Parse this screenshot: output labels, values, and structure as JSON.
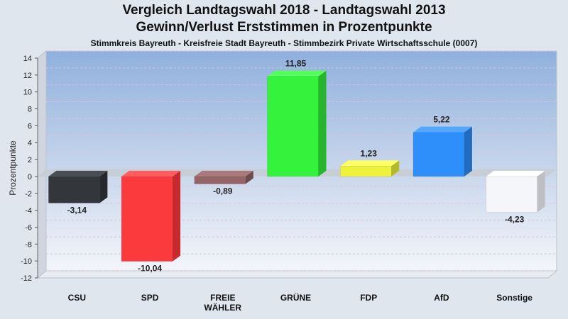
{
  "chart_data": {
    "type": "bar",
    "title": "Vergleich Landtagswahl 2018 - Landtagswahl 2013",
    "subtitle": "Gewinn/Verlust Erststimmen in Prozentpunkte",
    "subtitle2": "Stimmkreis Bayreuth - Kreisfreie Stadt Bayreuth - Stimmbezirk Private Wirtschaftsschule (0007)",
    "ylabel": "Prozentpunkte",
    "xlabel": "",
    "ylim": [
      -12,
      14
    ],
    "yticks": [
      "14",
      "12",
      "10",
      "8",
      "6",
      "4",
      "2",
      "0",
      "-2",
      "-4",
      "-6",
      "-8",
      "-10",
      "-12"
    ],
    "ytick_values": [
      14,
      12,
      10,
      8,
      6,
      4,
      2,
      0,
      -2,
      -4,
      -6,
      -8,
      -10,
      -12
    ],
    "categories": [
      [
        "CSU"
      ],
      [
        "SPD"
      ],
      [
        "FREIE",
        "WÄHLER"
      ],
      [
        "GRÜNE"
      ],
      [
        "FDP"
      ],
      [
        "AfD"
      ],
      [
        "Sonstige"
      ]
    ],
    "values": [
      -3.14,
      -10.04,
      -0.89,
      11.85,
      1.23,
      5.22,
      -4.23
    ],
    "value_labels": [
      "-3,14",
      "-10,04",
      "-0,89",
      "11,85",
      "1,23",
      "5,22",
      "-4,23"
    ],
    "colors": [
      "#33373c",
      "#fb3a3e",
      "#946466",
      "#35f23c",
      "#eef23a",
      "#2e8ffb",
      "#f5f6f9"
    ],
    "side_colors": [
      "#25282c",
      "#c62a2e",
      "#6e4a4c",
      "#27b52d",
      "#b5b82a",
      "#226cc0",
      "#bdbfc3"
    ],
    "top_colors": [
      "#4a4e54",
      "#ff5c60",
      "#a87a7c",
      "#55ff5c",
      "#ffff66",
      "#52a7ff",
      "#ffffff"
    ],
    "grid": true,
    "legend": "none"
  }
}
